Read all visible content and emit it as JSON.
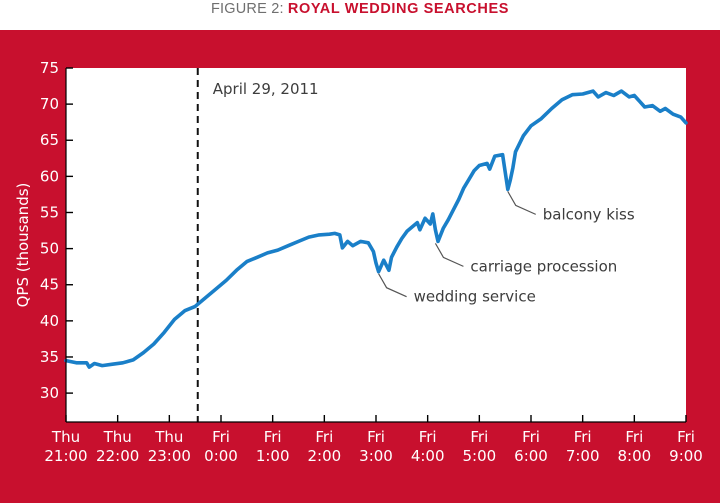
{
  "figure": {
    "prefix": "FIGURE 2: ",
    "title": "ROYAL WEDDING SEARCHES"
  },
  "colors": {
    "panel": "#c8102e",
    "plot_bg": "#ffffff",
    "line": "#1a7fc8",
    "text_on_panel": "#ffffff",
    "annotation": "#3d3d3d"
  },
  "chart_data": {
    "type": "line",
    "title": "ROYAL WEDDING SEARCHES",
    "ylabel": "QPS (thousands)",
    "xlabel": "",
    "ylim": [
      26,
      75
    ],
    "xlim": [
      21,
      33
    ],
    "grid": false,
    "y_ticks": [
      30,
      35,
      40,
      45,
      50,
      55,
      60,
      65,
      70,
      75
    ],
    "x_ticks": [
      {
        "x": 21,
        "day": "Thu",
        "time": "21:00"
      },
      {
        "x": 22,
        "day": "Thu",
        "time": "22:00"
      },
      {
        "x": 23,
        "day": "Thu",
        "time": "23:00"
      },
      {
        "x": 24,
        "day": "Fri",
        "time": "0:00"
      },
      {
        "x": 25,
        "day": "Fri",
        "time": "1:00"
      },
      {
        "x": 26,
        "day": "Fri",
        "time": "2:00"
      },
      {
        "x": 27,
        "day": "Fri",
        "time": "3:00"
      },
      {
        "x": 28,
        "day": "Fri",
        "time": "4:00"
      },
      {
        "x": 29,
        "day": "Fri",
        "time": "5:00"
      },
      {
        "x": 30,
        "day": "Fri",
        "time": "6:00"
      },
      {
        "x": 31,
        "day": "Fri",
        "time": "7:00"
      },
      {
        "x": 32,
        "day": "Fri",
        "time": "8:00"
      },
      {
        "x": 33,
        "day": "Fri",
        "time": "9:00"
      }
    ],
    "series": [
      {
        "points": [
          [
            21.0,
            34.5
          ],
          [
            21.2,
            34.2
          ],
          [
            21.4,
            34.2
          ],
          [
            21.45,
            33.6
          ],
          [
            21.55,
            34.1
          ],
          [
            21.7,
            33.8
          ],
          [
            21.9,
            34.0
          ],
          [
            22.1,
            34.2
          ],
          [
            22.3,
            34.6
          ],
          [
            22.5,
            35.6
          ],
          [
            22.7,
            36.8
          ],
          [
            22.9,
            38.4
          ],
          [
            23.1,
            40.2
          ],
          [
            23.3,
            41.4
          ],
          [
            23.5,
            42.0
          ],
          [
            23.7,
            43.2
          ],
          [
            23.9,
            44.4
          ],
          [
            24.1,
            45.6
          ],
          [
            24.3,
            47.0
          ],
          [
            24.5,
            48.2
          ],
          [
            24.7,
            48.8
          ],
          [
            24.9,
            49.4
          ],
          [
            25.1,
            49.8
          ],
          [
            25.3,
            50.4
          ],
          [
            25.5,
            51.0
          ],
          [
            25.7,
            51.6
          ],
          [
            25.9,
            51.9
          ],
          [
            26.1,
            52.0
          ],
          [
            26.2,
            52.1
          ],
          [
            26.3,
            51.9
          ],
          [
            26.35,
            50.1
          ],
          [
            26.45,
            51.0
          ],
          [
            26.55,
            50.4
          ],
          [
            26.7,
            51.0
          ],
          [
            26.85,
            50.8
          ],
          [
            26.95,
            49.6
          ],
          [
            27.0,
            48.0
          ],
          [
            27.05,
            46.8
          ],
          [
            27.15,
            48.4
          ],
          [
            27.25,
            47.0
          ],
          [
            27.3,
            48.8
          ],
          [
            27.4,
            50.2
          ],
          [
            27.5,
            51.4
          ],
          [
            27.6,
            52.4
          ],
          [
            27.7,
            53.0
          ],
          [
            27.8,
            53.6
          ],
          [
            27.85,
            52.6
          ],
          [
            27.95,
            54.2
          ],
          [
            28.05,
            53.4
          ],
          [
            28.1,
            54.8
          ],
          [
            28.15,
            52.6
          ],
          [
            28.2,
            51.0
          ],
          [
            28.3,
            52.8
          ],
          [
            28.4,
            54.0
          ],
          [
            28.5,
            55.4
          ],
          [
            28.6,
            56.8
          ],
          [
            28.7,
            58.4
          ],
          [
            28.8,
            59.6
          ],
          [
            28.9,
            60.8
          ],
          [
            29.0,
            61.5
          ],
          [
            29.15,
            61.8
          ],
          [
            29.2,
            61.0
          ],
          [
            29.3,
            62.8
          ],
          [
            29.45,
            63.0
          ],
          [
            29.55,
            58.2
          ],
          [
            29.6,
            59.5
          ],
          [
            29.65,
            61.2
          ],
          [
            29.7,
            63.4
          ],
          [
            29.85,
            65.6
          ],
          [
            30.0,
            67.0
          ],
          [
            30.2,
            68.0
          ],
          [
            30.4,
            69.4
          ],
          [
            30.6,
            70.6
          ],
          [
            30.8,
            71.3
          ],
          [
            31.0,
            71.4
          ],
          [
            31.2,
            71.8
          ],
          [
            31.3,
            71.0
          ],
          [
            31.45,
            71.6
          ],
          [
            31.6,
            71.2
          ],
          [
            31.75,
            71.8
          ],
          [
            31.9,
            71.0
          ],
          [
            32.0,
            71.2
          ],
          [
            32.1,
            70.4
          ],
          [
            32.2,
            69.6
          ],
          [
            32.35,
            69.8
          ],
          [
            32.5,
            69.0
          ],
          [
            32.6,
            69.4
          ],
          [
            32.75,
            68.6
          ],
          [
            32.9,
            68.2
          ],
          [
            33.0,
            67.4
          ]
        ]
      }
    ],
    "marker": {
      "x": 23.55,
      "label": "April 29, 2011"
    },
    "annotations": [
      {
        "text": "wedding service",
        "x": 27.05,
        "y": 46.8
      },
      {
        "text": "carriage procession",
        "x": 28.15,
        "y": 51.0
      },
      {
        "text": "balcony kiss",
        "x": 29.55,
        "y": 58.2
      }
    ]
  }
}
